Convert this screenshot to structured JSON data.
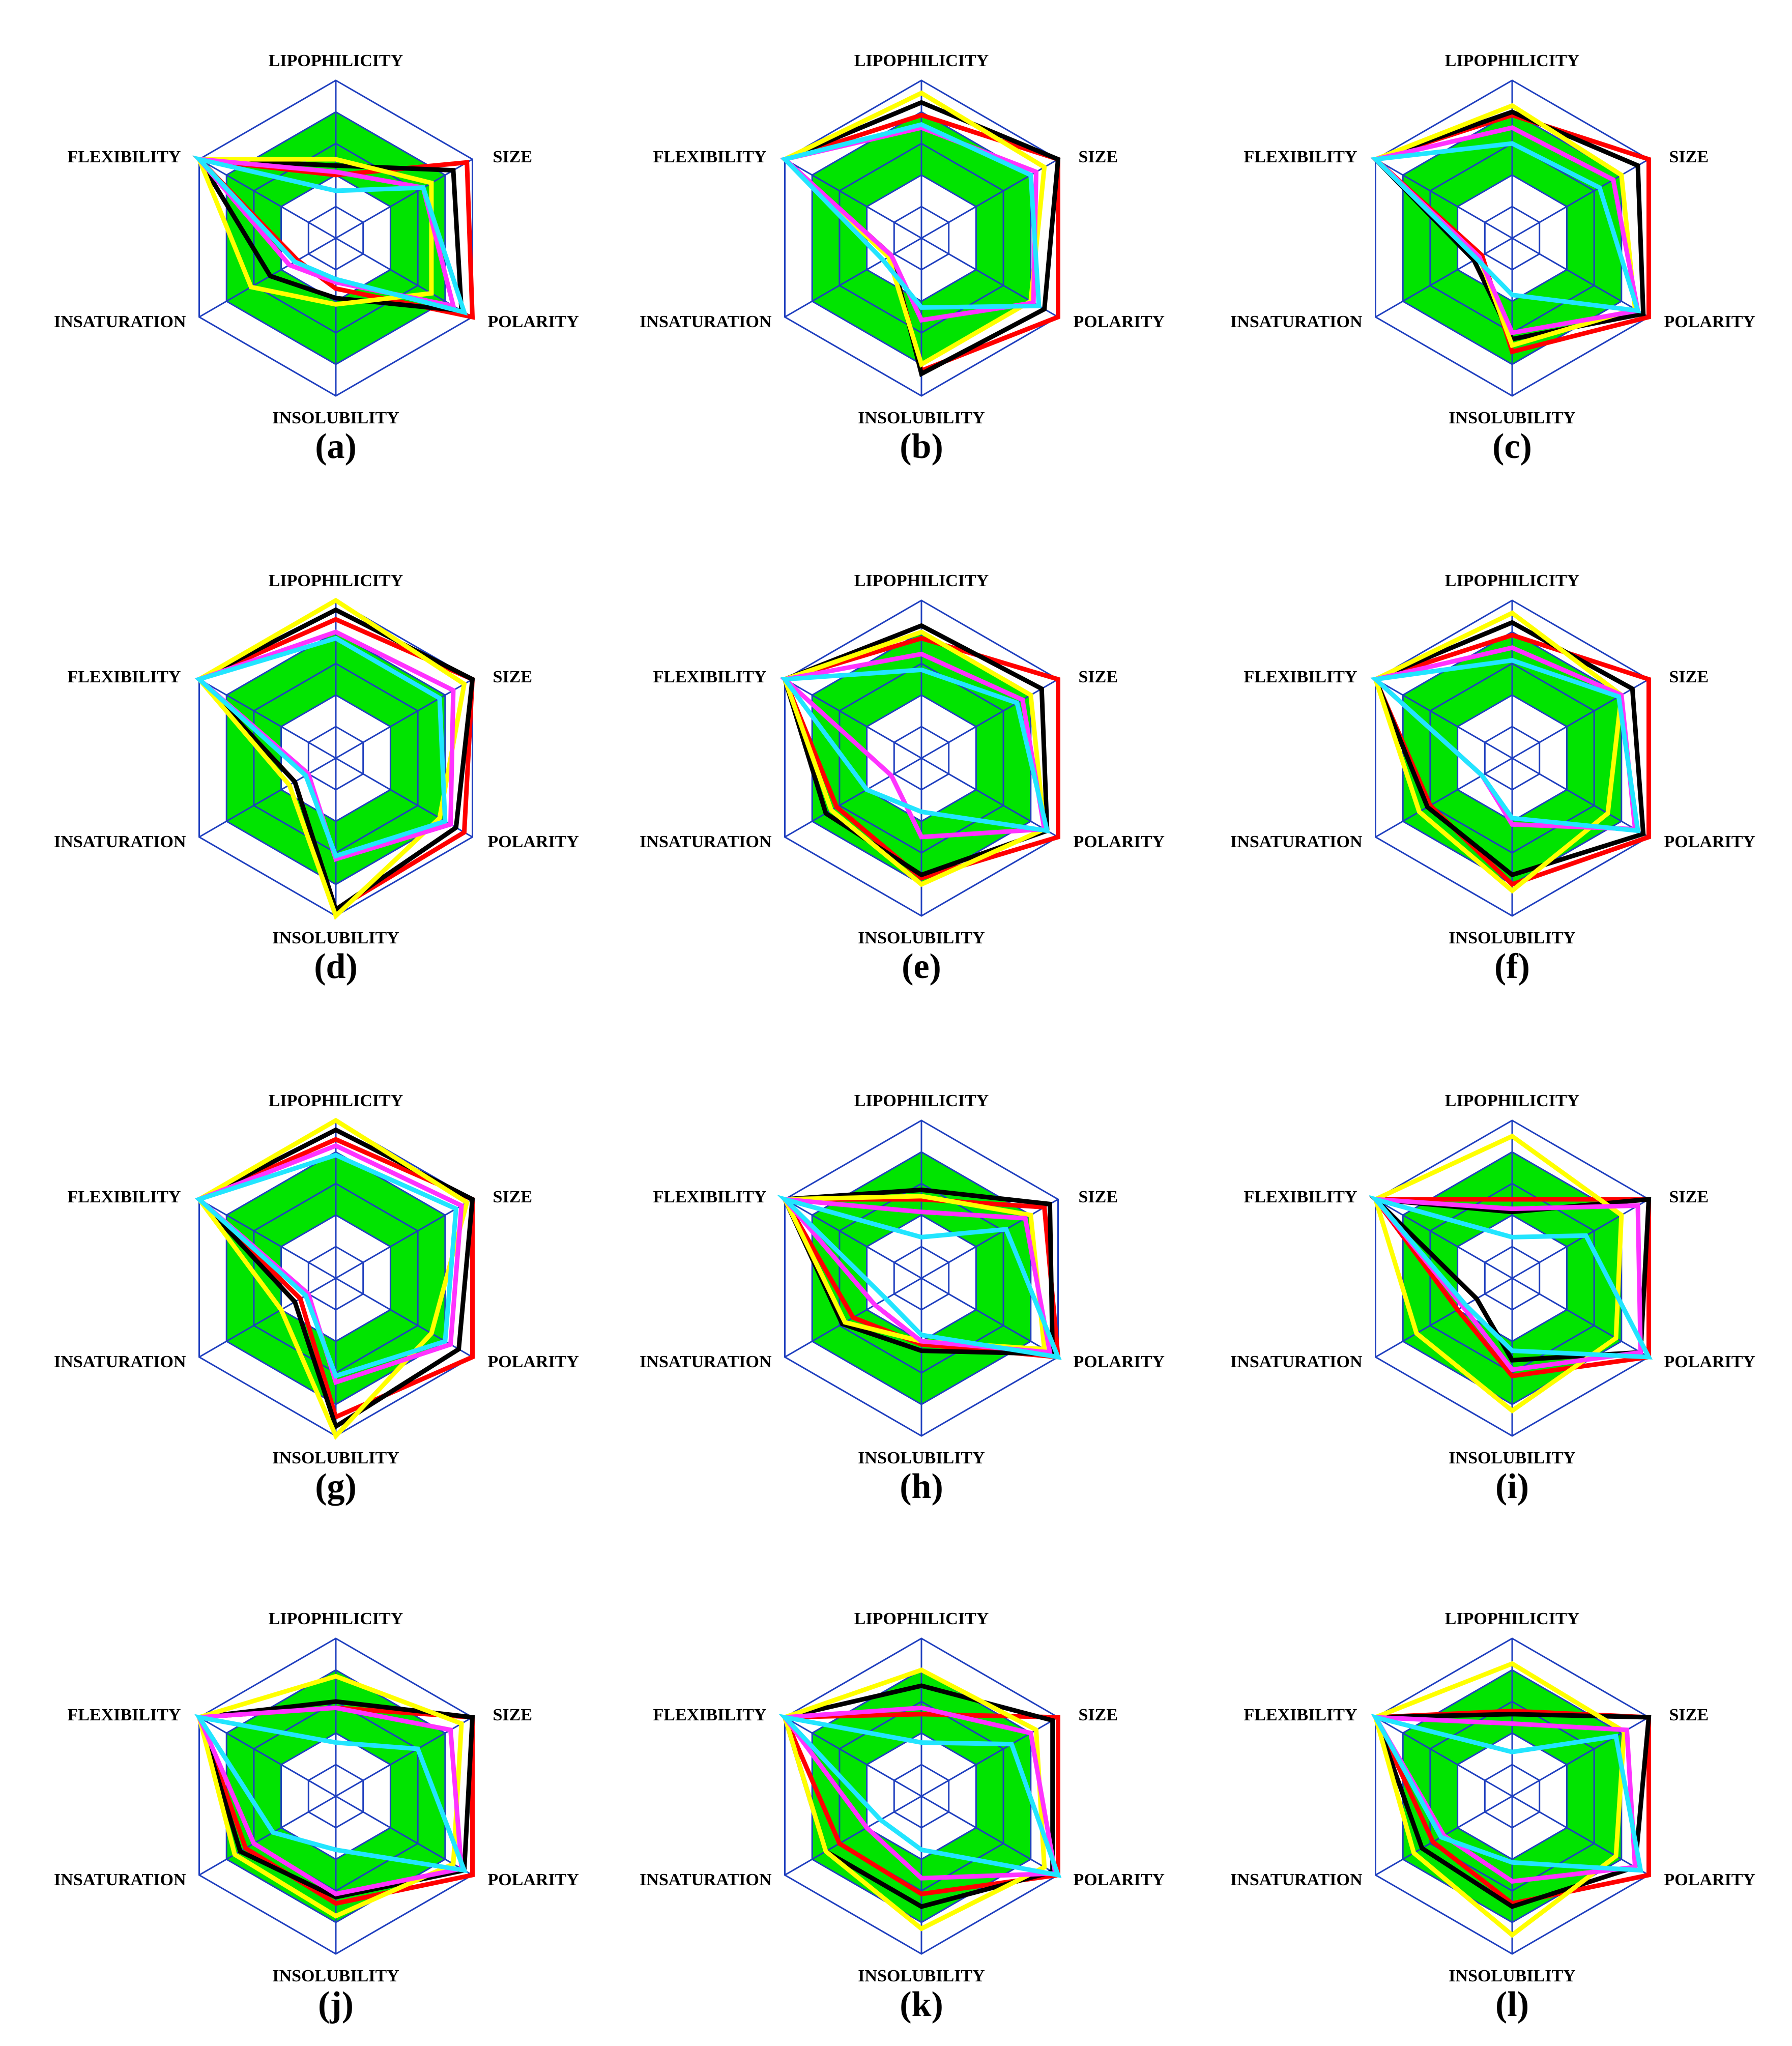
{
  "colors": {
    "grid": "#1f3fbf",
    "band": "#00e400",
    "series": {
      "red": "#ff0000",
      "black": "#000000",
      "yellow": "#ffff00",
      "magenta": "#ff33ff",
      "cyan": "#22e5ff"
    }
  },
  "axes": [
    "LIPOPHILICITY",
    "SIZE",
    "POLARITY",
    "INSOLUBILITY",
    "INSATURATION",
    "FLEXIBILITY"
  ],
  "chart_data": {
    "type": "radar",
    "grid_levels": 5,
    "band_range": [
      0.4,
      0.8
    ],
    "series_order": [
      "red",
      "black",
      "yellow",
      "magenta",
      "cyan"
    ],
    "panels": [
      {
        "label": "(a)",
        "series": {
          "red": [
            0.4,
            0.96,
            1.0,
            0.32,
            0.28,
            1.0
          ],
          "black": [
            0.46,
            0.86,
            0.92,
            0.38,
            0.48,
            1.0
          ],
          "yellow": [
            0.5,
            0.7,
            0.7,
            0.42,
            0.62,
            1.0
          ],
          "magenta": [
            0.42,
            0.64,
            0.86,
            0.28,
            0.34,
            1.0
          ],
          "cyan": [
            0.3,
            0.64,
            0.94,
            0.26,
            0.3,
            1.0
          ]
        }
      },
      {
        "label": "(b)",
        "series": {
          "red": [
            0.78,
            1.0,
            1.0,
            0.84,
            0.22,
            1.0
          ],
          "black": [
            0.86,
            1.0,
            0.9,
            0.86,
            0.22,
            1.0
          ],
          "yellow": [
            0.92,
            0.9,
            0.8,
            0.8,
            0.24,
            1.0
          ],
          "magenta": [
            0.7,
            0.84,
            0.82,
            0.52,
            0.22,
            1.0
          ],
          "cyan": [
            0.72,
            0.8,
            0.86,
            0.44,
            0.28,
            1.0
          ]
        }
      },
      {
        "label": "(c)",
        "series": {
          "red": [
            0.78,
            1.0,
            1.0,
            0.72,
            0.22,
            1.0
          ],
          "black": [
            0.8,
            0.92,
            0.96,
            0.64,
            0.28,
            1.0
          ],
          "yellow": [
            0.84,
            0.8,
            0.9,
            0.68,
            0.24,
            1.0
          ],
          "magenta": [
            0.7,
            0.74,
            0.92,
            0.6,
            0.24,
            1.0
          ],
          "cyan": [
            0.6,
            0.64,
            0.92,
            0.36,
            0.26,
            1.0
          ]
        }
      },
      {
        "label": "(d)",
        "series": {
          "red": [
            0.88,
            1.0,
            0.94,
            0.96,
            0.3,
            1.0
          ],
          "black": [
            0.94,
            1.0,
            0.88,
            0.96,
            0.3,
            1.0
          ],
          "yellow": [
            1.0,
            0.94,
            0.76,
            1.0,
            0.34,
            1.0
          ],
          "magenta": [
            0.8,
            0.86,
            0.84,
            0.64,
            0.2,
            1.0
          ],
          "cyan": [
            0.76,
            0.76,
            0.8,
            0.62,
            0.22,
            1.0
          ]
        }
      },
      {
        "label": "(e)",
        "series": {
          "red": [
            0.76,
            1.0,
            1.0,
            0.76,
            0.62,
            1.0
          ],
          "black": [
            0.84,
            0.88,
            0.92,
            0.74,
            0.7,
            1.0
          ],
          "yellow": [
            0.8,
            0.8,
            0.9,
            0.8,
            0.66,
            1.0
          ],
          "magenta": [
            0.66,
            0.74,
            0.9,
            0.5,
            0.22,
            1.0
          ],
          "cyan": [
            0.56,
            0.7,
            0.92,
            0.34,
            0.4,
            1.0
          ]
        }
      },
      {
        "label": "(f)",
        "series": {
          "red": [
            0.78,
            1.0,
            1.0,
            0.8,
            0.6,
            1.0
          ],
          "black": [
            0.86,
            0.88,
            0.96,
            0.74,
            0.62,
            1.0
          ],
          "yellow": [
            0.92,
            0.8,
            0.7,
            0.84,
            0.68,
            1.0
          ],
          "magenta": [
            0.7,
            0.8,
            0.9,
            0.42,
            0.22,
            1.0
          ],
          "cyan": [
            0.62,
            0.78,
            0.92,
            0.38,
            0.22,
            1.0
          ]
        }
      },
      {
        "label": "(g)",
        "series": {
          "red": [
            0.88,
            1.0,
            1.0,
            0.88,
            0.26,
            1.0
          ],
          "black": [
            0.94,
            1.0,
            0.9,
            0.94,
            0.3,
            1.0
          ],
          "yellow": [
            1.0,
            0.96,
            0.7,
            1.0,
            0.4,
            1.0
          ],
          "magenta": [
            0.84,
            0.92,
            0.84,
            0.66,
            0.2,
            1.0
          ],
          "cyan": [
            0.78,
            0.88,
            0.8,
            0.62,
            0.22,
            1.0
          ]
        }
      },
      {
        "label": "(h)",
        "series": {
          "red": [
            0.5,
            0.9,
            1.0,
            0.42,
            0.5,
            1.0
          ],
          "black": [
            0.56,
            0.94,
            0.96,
            0.46,
            0.58,
            1.0
          ],
          "yellow": [
            0.52,
            0.8,
            0.9,
            0.4,
            0.56,
            1.0
          ],
          "magenta": [
            0.42,
            0.76,
            0.94,
            0.4,
            0.34,
            1.0
          ],
          "cyan": [
            0.26,
            0.62,
            1.0,
            0.36,
            0.26,
            1.0
          ]
        }
      },
      {
        "label": "(i)",
        "series": {
          "red": [
            0.5,
            1.0,
            1.0,
            0.62,
            0.4,
            1.0
          ],
          "black": [
            0.42,
            1.0,
            0.94,
            0.52,
            0.26,
            1.0
          ],
          "yellow": [
            0.9,
            0.8,
            0.76,
            0.84,
            0.7,
            1.0
          ],
          "magenta": [
            0.44,
            0.92,
            0.94,
            0.58,
            0.36,
            1.0
          ],
          "cyan": [
            0.26,
            0.54,
            1.0,
            0.46,
            0.34,
            1.0
          ]
        }
      },
      {
        "label": "(j)",
        "series": {
          "red": [
            0.56,
            1.0,
            1.0,
            0.68,
            0.66,
            1.0
          ],
          "black": [
            0.6,
            1.0,
            0.94,
            0.64,
            0.7,
            1.0
          ],
          "yellow": [
            0.76,
            0.92,
            0.86,
            0.76,
            0.74,
            1.0
          ],
          "magenta": [
            0.56,
            0.84,
            0.92,
            0.62,
            0.6,
            1.0
          ],
          "cyan": [
            0.34,
            0.6,
            0.94,
            0.34,
            0.46,
            1.0
          ]
        }
      },
      {
        "label": "(k)",
        "series": {
          "red": [
            0.52,
            1.0,
            1.0,
            0.62,
            0.6,
            1.0
          ],
          "black": [
            0.7,
            0.96,
            0.96,
            0.7,
            0.7,
            1.0
          ],
          "yellow": [
            0.8,
            0.84,
            0.9,
            0.84,
            0.7,
            1.0
          ],
          "magenta": [
            0.56,
            0.8,
            0.98,
            0.52,
            0.4,
            1.0
          ],
          "cyan": [
            0.34,
            0.66,
            1.0,
            0.34,
            0.3,
            1.0
          ]
        }
      },
      {
        "label": "(l)",
        "series": {
          "red": [
            0.54,
            1.0,
            1.0,
            0.68,
            0.58,
            1.0
          ],
          "black": [
            0.52,
            1.0,
            0.9,
            0.7,
            0.66,
            1.0
          ],
          "yellow": [
            0.84,
            0.82,
            0.76,
            0.88,
            0.72,
            1.0
          ],
          "magenta": [
            0.46,
            0.84,
            0.9,
            0.54,
            0.5,
            1.0
          ],
          "cyan": [
            0.28,
            0.76,
            0.94,
            0.42,
            0.52,
            1.0
          ]
        }
      }
    ]
  }
}
